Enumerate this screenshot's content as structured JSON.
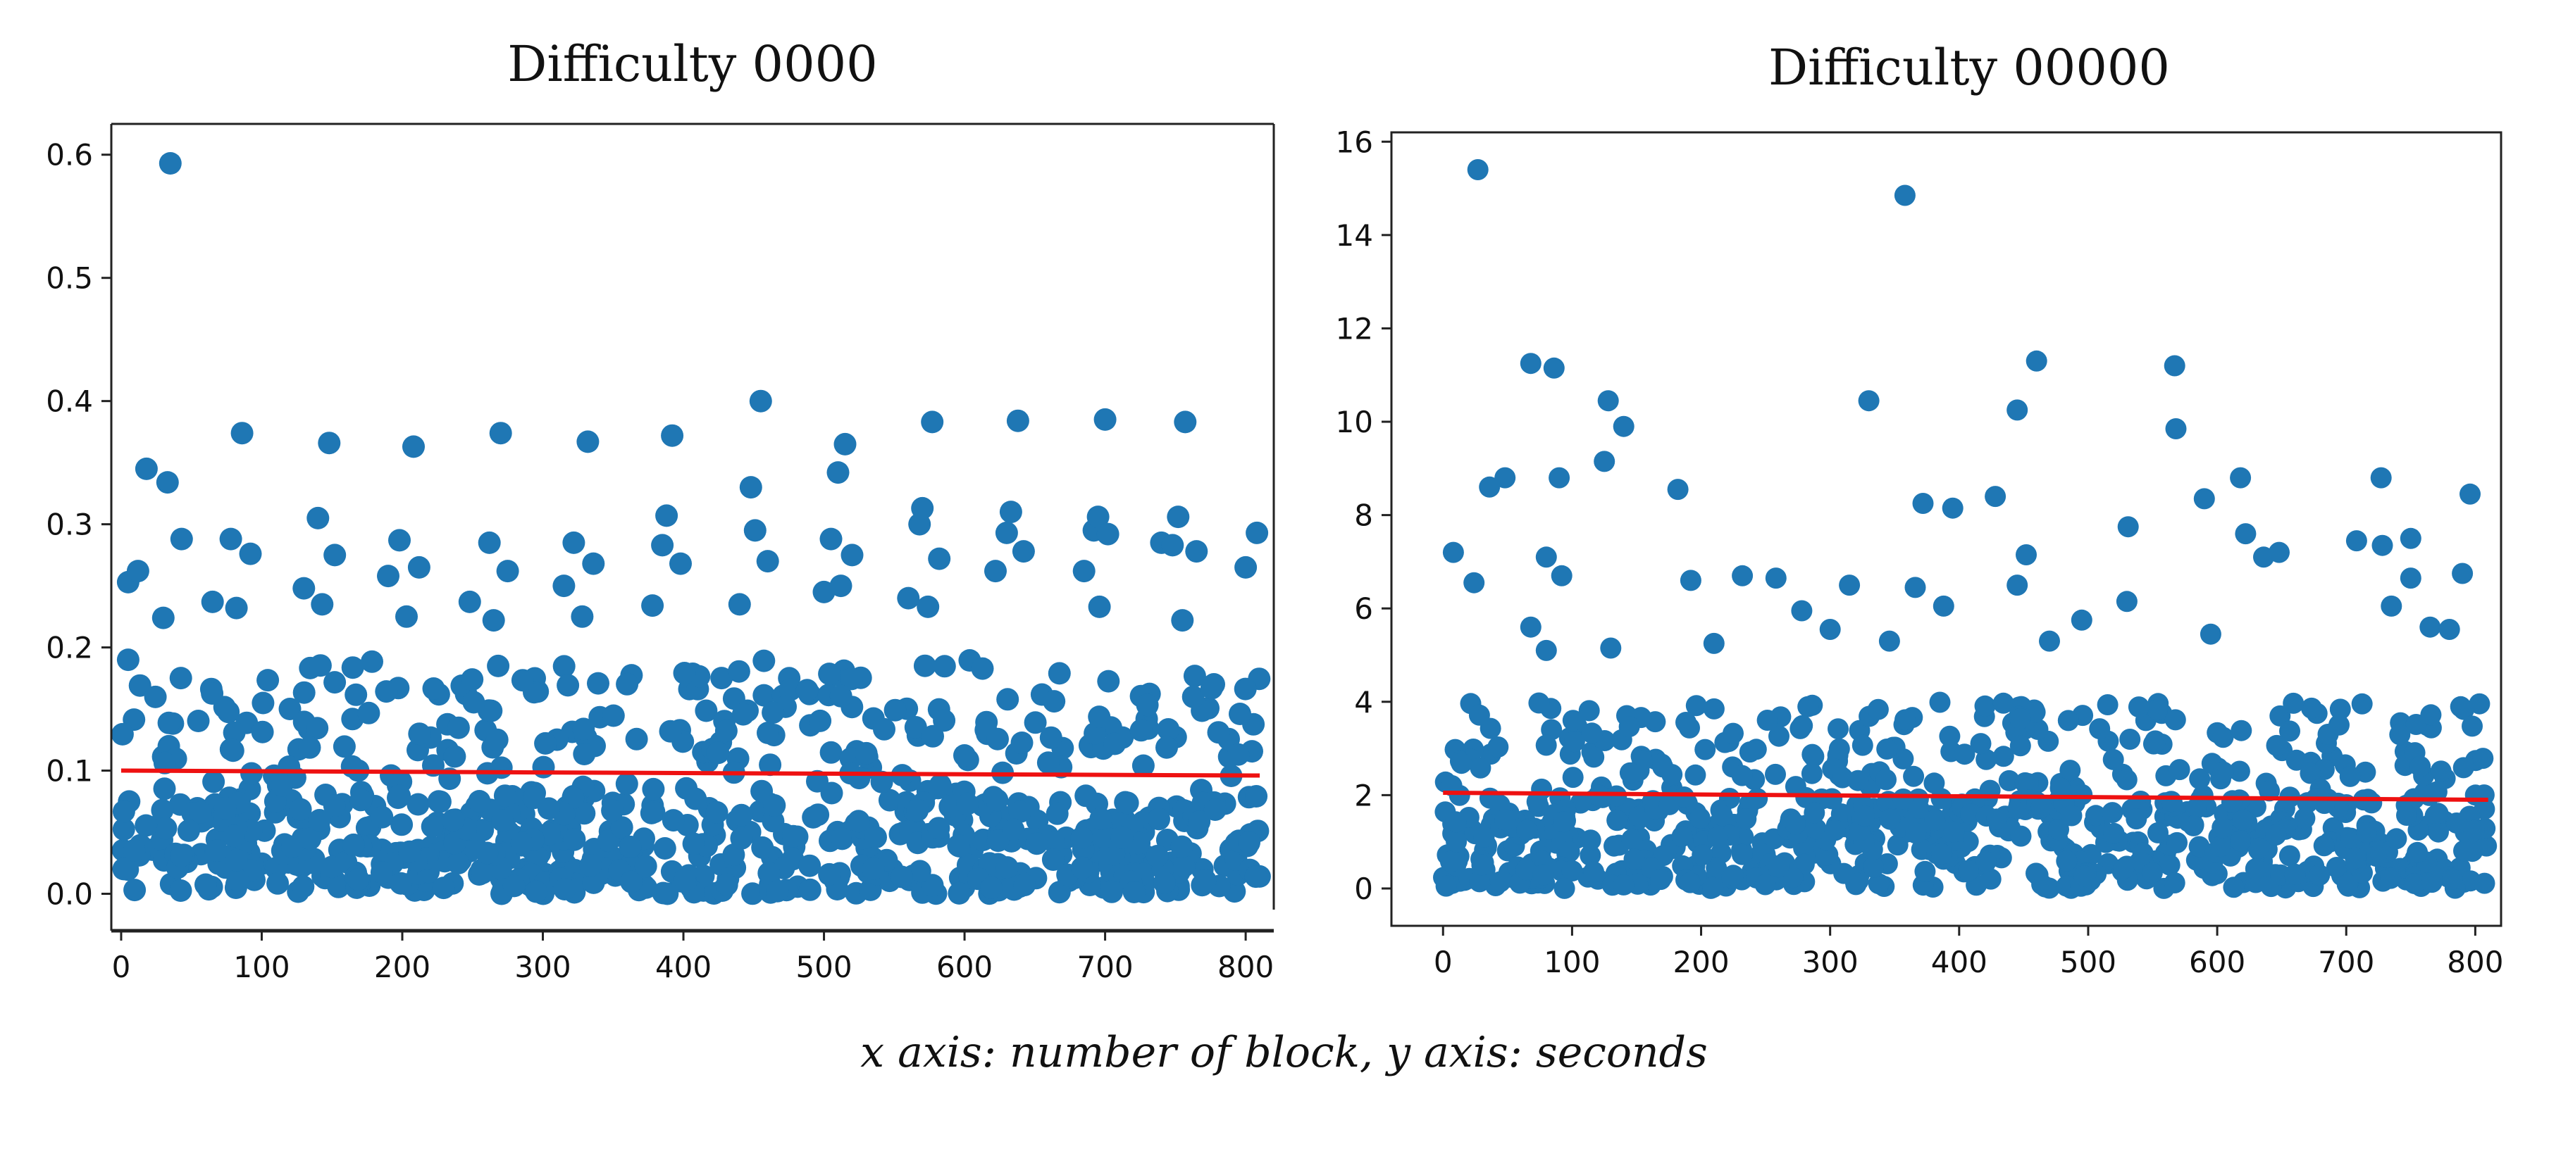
{
  "caption": "x axis: number of block, y axis: seconds",
  "colors": {
    "points": "#1f77b4",
    "trend": "#ee1111",
    "axes": "#222222",
    "text": "#111111"
  },
  "chart_data": [
    {
      "type": "scatter",
      "title": "Difficulty 0000",
      "xlabel": "",
      "ylabel": "",
      "xlim": [
        -7,
        820
      ],
      "ylim": [
        -0.03,
        0.625
      ],
      "xticks": [
        0,
        100,
        200,
        300,
        400,
        500,
        600,
        700,
        800
      ],
      "xtick_labels": [
        "0",
        "100",
        "200",
        "300",
        "400",
        "500",
        "600",
        "700",
        "800"
      ],
      "yticks": [
        0.0,
        0.1,
        0.2,
        0.3,
        0.4,
        0.5,
        0.6
      ],
      "ytick_labels": [
        "0.0",
        "0.1",
        "0.2",
        "0.3",
        "0.4",
        "0.5",
        "0.6"
      ],
      "n_points": 810,
      "x_range": [
        0,
        810
      ],
      "base_distribution": {
        "dense_band": [
          0.0,
          0.08
        ],
        "mid_band": [
          0.08,
          0.19
        ],
        "mean": 0.098
      },
      "highlighted_points": [
        {
          "x": 35,
          "y": 0.593
        },
        {
          "x": 5,
          "y": 0.19
        },
        {
          "x": 5,
          "y": 0.253
        },
        {
          "x": 12,
          "y": 0.262
        },
        {
          "x": 18,
          "y": 0.345
        },
        {
          "x": 33,
          "y": 0.334
        },
        {
          "x": 30,
          "y": 0.224
        },
        {
          "x": 43,
          "y": 0.288
        },
        {
          "x": 65,
          "y": 0.237
        },
        {
          "x": 78,
          "y": 0.288
        },
        {
          "x": 82,
          "y": 0.232
        },
        {
          "x": 86,
          "y": 0.374
        },
        {
          "x": 92,
          "y": 0.276
        },
        {
          "x": 130,
          "y": 0.248
        },
        {
          "x": 140,
          "y": 0.305
        },
        {
          "x": 143,
          "y": 0.235
        },
        {
          "x": 148,
          "y": 0.366
        },
        {
          "x": 152,
          "y": 0.275
        },
        {
          "x": 190,
          "y": 0.258
        },
        {
          "x": 198,
          "y": 0.287
        },
        {
          "x": 203,
          "y": 0.225
        },
        {
          "x": 208,
          "y": 0.363
        },
        {
          "x": 212,
          "y": 0.265
        },
        {
          "x": 248,
          "y": 0.237
        },
        {
          "x": 262,
          "y": 0.285
        },
        {
          "x": 265,
          "y": 0.222
        },
        {
          "x": 270,
          "y": 0.374
        },
        {
          "x": 275,
          "y": 0.262
        },
        {
          "x": 315,
          "y": 0.25
        },
        {
          "x": 322,
          "y": 0.285
        },
        {
          "x": 328,
          "y": 0.225
        },
        {
          "x": 332,
          "y": 0.367
        },
        {
          "x": 336,
          "y": 0.268
        },
        {
          "x": 378,
          "y": 0.234
        },
        {
          "x": 385,
          "y": 0.283
        },
        {
          "x": 388,
          "y": 0.307
        },
        {
          "x": 392,
          "y": 0.372
        },
        {
          "x": 398,
          "y": 0.268
        },
        {
          "x": 440,
          "y": 0.235
        },
        {
          "x": 448,
          "y": 0.33
        },
        {
          "x": 451,
          "y": 0.295
        },
        {
          "x": 455,
          "y": 0.4
        },
        {
          "x": 460,
          "y": 0.27
        },
        {
          "x": 500,
          "y": 0.245
        },
        {
          "x": 505,
          "y": 0.288
        },
        {
          "x": 510,
          "y": 0.342
        },
        {
          "x": 512,
          "y": 0.25
        },
        {
          "x": 515,
          "y": 0.365
        },
        {
          "x": 520,
          "y": 0.275
        },
        {
          "x": 560,
          "y": 0.24
        },
        {
          "x": 568,
          "y": 0.3
        },
        {
          "x": 570,
          "y": 0.313
        },
        {
          "x": 574,
          "y": 0.233
        },
        {
          "x": 577,
          "y": 0.383
        },
        {
          "x": 582,
          "y": 0.272
        },
        {
          "x": 622,
          "y": 0.262
        },
        {
          "x": 630,
          "y": 0.293
        },
        {
          "x": 633,
          "y": 0.31
        },
        {
          "x": 638,
          "y": 0.384
        },
        {
          "x": 642,
          "y": 0.278
        },
        {
          "x": 685,
          "y": 0.262
        },
        {
          "x": 692,
          "y": 0.295
        },
        {
          "x": 695,
          "y": 0.306
        },
        {
          "x": 696,
          "y": 0.233
        },
        {
          "x": 700,
          "y": 0.385
        },
        {
          "x": 702,
          "y": 0.292
        },
        {
          "x": 740,
          "y": 0.285
        },
        {
          "x": 748,
          "y": 0.283
        },
        {
          "x": 752,
          "y": 0.306
        },
        {
          "x": 755,
          "y": 0.222
        },
        {
          "x": 757,
          "y": 0.383
        },
        {
          "x": 765,
          "y": 0.278
        },
        {
          "x": 800,
          "y": 0.265
        },
        {
          "x": 808,
          "y": 0.293
        }
      ],
      "trend_line": {
        "x": [
          0,
          810
        ],
        "y": [
          0.1,
          0.096
        ]
      }
    },
    {
      "type": "scatter",
      "title": "Difficulty 00000",
      "xlabel": "",
      "ylabel": "",
      "xlim": [
        -40,
        820
      ],
      "ylim": [
        -0.8,
        16.2
      ],
      "xticks": [
        0,
        100,
        200,
        300,
        400,
        500,
        600,
        700,
        800
      ],
      "xtick_labels": [
        "0",
        "100",
        "200",
        "300",
        "400",
        "500",
        "600",
        "700",
        "800"
      ],
      "yticks": [
        0,
        2,
        4,
        6,
        8,
        10,
        12,
        14,
        16
      ],
      "ytick_labels": [
        "0",
        "2",
        "4",
        "6",
        "8",
        "10",
        "12",
        "14",
        "16"
      ],
      "n_points": 810,
      "x_range": [
        0,
        810
      ],
      "base_distribution": {
        "dense_band": [
          0.0,
          2.0
        ],
        "mid_band": [
          2.0,
          4.0
        ],
        "mean": 2.0
      },
      "highlighted_points": [
        {
          "x": 27,
          "y": 15.4
        },
        {
          "x": 358,
          "y": 14.85
        },
        {
          "x": 68,
          "y": 11.25
        },
        {
          "x": 86,
          "y": 11.15
        },
        {
          "x": 460,
          "y": 11.3
        },
        {
          "x": 567,
          "y": 11.2
        },
        {
          "x": 128,
          "y": 10.45
        },
        {
          "x": 330,
          "y": 10.45
        },
        {
          "x": 445,
          "y": 10.25
        },
        {
          "x": 140,
          "y": 9.9
        },
        {
          "x": 568,
          "y": 9.85
        },
        {
          "x": 125,
          "y": 9.15
        },
        {
          "x": 618,
          "y": 8.8
        },
        {
          "x": 727,
          "y": 8.8
        },
        {
          "x": 90,
          "y": 8.8
        },
        {
          "x": 48,
          "y": 8.8
        },
        {
          "x": 36,
          "y": 8.6
        },
        {
          "x": 182,
          "y": 8.55
        },
        {
          "x": 796,
          "y": 8.45
        },
        {
          "x": 428,
          "y": 8.4
        },
        {
          "x": 590,
          "y": 8.35
        },
        {
          "x": 372,
          "y": 8.25
        },
        {
          "x": 395,
          "y": 8.15
        },
        {
          "x": 531,
          "y": 7.75
        },
        {
          "x": 622,
          "y": 7.6
        },
        {
          "x": 750,
          "y": 7.5
        },
        {
          "x": 708,
          "y": 7.45
        },
        {
          "x": 728,
          "y": 7.35
        },
        {
          "x": 8,
          "y": 7.2
        },
        {
          "x": 80,
          "y": 7.1
        },
        {
          "x": 452,
          "y": 7.15
        },
        {
          "x": 636,
          "y": 7.1
        },
        {
          "x": 648,
          "y": 7.2
        },
        {
          "x": 92,
          "y": 6.7
        },
        {
          "x": 232,
          "y": 6.7
        },
        {
          "x": 258,
          "y": 6.65
        },
        {
          "x": 192,
          "y": 6.6
        },
        {
          "x": 790,
          "y": 6.75
        },
        {
          "x": 24,
          "y": 6.55
        },
        {
          "x": 315,
          "y": 6.5
        },
        {
          "x": 445,
          "y": 6.5
        },
        {
          "x": 366,
          "y": 6.45
        },
        {
          "x": 750,
          "y": 6.65
        },
        {
          "x": 530,
          "y": 6.15
        },
        {
          "x": 388,
          "y": 6.05
        },
        {
          "x": 735,
          "y": 6.05
        },
        {
          "x": 278,
          "y": 5.95
        },
        {
          "x": 68,
          "y": 5.6
        },
        {
          "x": 300,
          "y": 5.55
        },
        {
          "x": 346,
          "y": 5.3
        },
        {
          "x": 495,
          "y": 5.75
        },
        {
          "x": 595,
          "y": 5.45
        },
        {
          "x": 130,
          "y": 5.15
        },
        {
          "x": 80,
          "y": 5.1
        },
        {
          "x": 210,
          "y": 5.25
        },
        {
          "x": 765,
          "y": 5.6
        },
        {
          "x": 780,
          "y": 5.55
        },
        {
          "x": 470,
          "y": 5.3
        }
      ],
      "trend_line": {
        "x": [
          0,
          810
        ],
        "y": [
          2.05,
          1.9
        ]
      }
    }
  ]
}
